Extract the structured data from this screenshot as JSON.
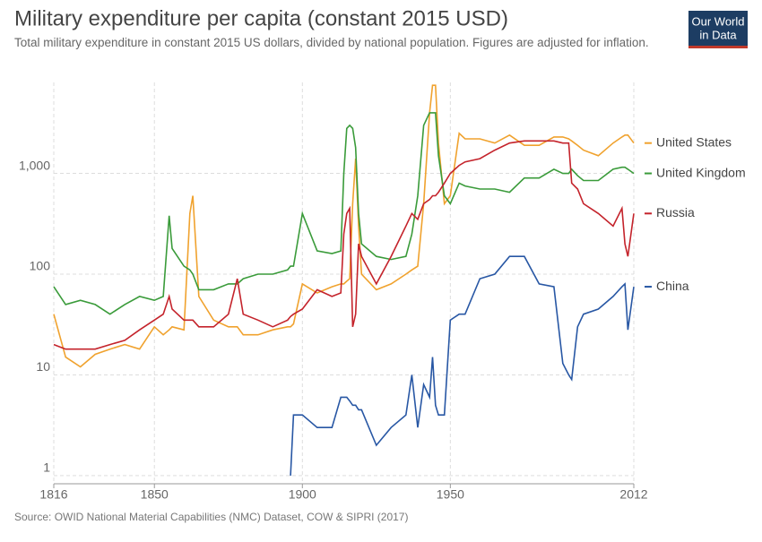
{
  "chart_data": {
    "type": "line",
    "title": "Military expenditure per capita (constant 2015 USD)",
    "subtitle": "Total military expenditure in constant 2015 US dollars, divided by national population. Figures are adjusted for inflation.",
    "source": "Source: OWID National Material Capabilities (NMC) Dataset, COW & SIPRI (2017)",
    "logo": [
      "Our World",
      "in Data"
    ],
    "log_scale": true,
    "grid": true,
    "xlim": [
      1816,
      2012
    ],
    "xticks": [
      1816,
      1850,
      1900,
      1950,
      2012
    ],
    "ylim": [
      0.83,
      8000
    ],
    "yticks": [
      1,
      10,
      100,
      {
        "value": 1000,
        "label": "1,000"
      }
    ],
    "x": [
      1816,
      1820,
      1825,
      1830,
      1835,
      1840,
      1845,
      1850,
      1853,
      1855,
      1856,
      1860,
      1862,
      1863,
      1865,
      1870,
      1875,
      1878,
      1880,
      1885,
      1890,
      1895,
      1896,
      1897,
      1900,
      1905,
      1910,
      1913,
      1914,
      1915,
      1916,
      1917,
      1918,
      1919,
      1920,
      1925,
      1930,
      1935,
      1937,
      1939,
      1941,
      1943,
      1944,
      1945,
      1946,
      1948,
      1950,
      1953,
      1955,
      1960,
      1965,
      1970,
      1975,
      1980,
      1985,
      1988,
      1990,
      1991,
      1993,
      1995,
      2000,
      2005,
      2008,
      2009,
      2010,
      2012
    ],
    "series": [
      {
        "name": "United States",
        "color": "#f0a22e",
        "values": [
          40,
          15,
          12,
          16,
          18,
          20,
          18,
          30,
          25,
          28,
          30,
          28,
          400,
          600,
          60,
          35,
          30,
          30,
          25,
          25,
          28,
          30,
          30,
          32,
          80,
          65,
          75,
          80,
          80,
          85,
          90,
          500,
          1400,
          300,
          100,
          70,
          80,
          100,
          110,
          120,
          500,
          4000,
          7500,
          7500,
          2000,
          500,
          600,
          2500,
          2200,
          2200,
          2000,
          2400,
          1900,
          1900,
          2300,
          2300,
          2200,
          2100,
          1900,
          1700,
          1500,
          2000,
          2300,
          2400,
          2400,
          2000
        ]
      },
      {
        "name": "United Kingdom",
        "color": "#3a9b3a",
        "values": [
          75,
          50,
          55,
          50,
          40,
          50,
          60,
          55,
          60,
          380,
          180,
          120,
          110,
          100,
          70,
          70,
          80,
          80,
          90,
          100,
          100,
          110,
          120,
          120,
          400,
          170,
          160,
          170,
          1000,
          2800,
          3000,
          2800,
          1800,
          400,
          200,
          150,
          140,
          150,
          250,
          600,
          3000,
          4000,
          4000,
          4000,
          1500,
          600,
          500,
          800,
          750,
          700,
          700,
          650,
          900,
          900,
          1100,
          1000,
          1000,
          1100,
          950,
          850,
          850,
          1100,
          1150,
          1150,
          1100,
          1000
        ]
      },
      {
        "name": "Russia",
        "color": "#c4232b",
        "values": [
          20,
          18,
          18,
          18,
          20,
          22,
          28,
          35,
          40,
          60,
          45,
          35,
          35,
          35,
          30,
          30,
          40,
          90,
          40,
          35,
          30,
          35,
          38,
          40,
          45,
          70,
          60,
          65,
          250,
          400,
          450,
          30,
          40,
          200,
          150,
          80,
          150,
          300,
          400,
          350,
          500,
          550,
          600,
          600,
          650,
          800,
          1000,
          1200,
          1300,
          1400,
          1700,
          2000,
          2100,
          2100,
          2100,
          2000,
          2000,
          800,
          700,
          500,
          400,
          300,
          450,
          200,
          150,
          400
        ]
      },
      {
        "name": "China",
        "color": "#2857a4",
        "values": [
          null,
          null,
          null,
          null,
          null,
          null,
          null,
          null,
          null,
          null,
          null,
          null,
          null,
          null,
          null,
          null,
          null,
          null,
          null,
          null,
          null,
          null,
          1,
          4,
          4,
          3,
          3,
          6,
          6,
          6,
          5.5,
          5,
          5,
          4.5,
          4.5,
          2,
          3,
          4,
          10,
          3,
          8,
          6,
          15,
          5,
          4,
          4,
          35,
          40,
          40,
          90,
          100,
          150,
          150,
          80,
          75,
          13,
          10,
          9,
          30,
          40,
          45,
          60,
          75,
          80,
          28,
          75
        ]
      }
    ]
  }
}
